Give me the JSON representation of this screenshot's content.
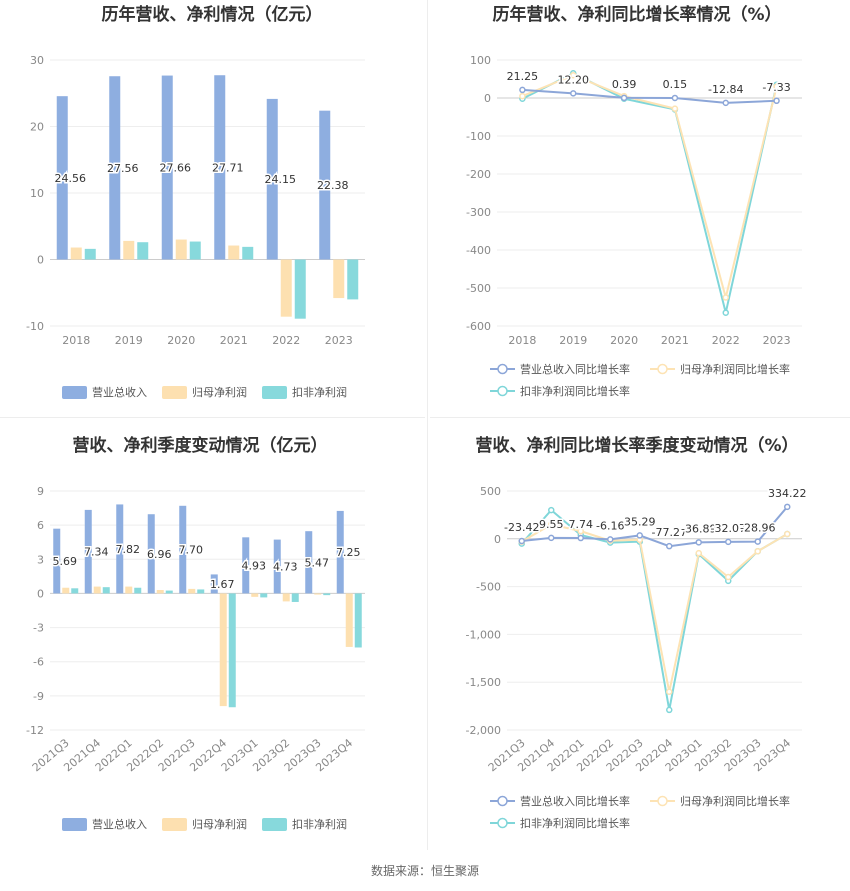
{
  "source": "数据来源：恒生聚源",
  "colors": {
    "revenue": "#8eaee0",
    "net_profit": "#fde0b0",
    "deducted_profit": "#87d9dc",
    "rev_line": "#8ca6d8",
    "np_line": "#fde3b4",
    "dp_line": "#7fd6d9"
  },
  "chart_data": [
    {
      "type": "bar",
      "title": "历年营收、净利情况（亿元）",
      "categories": [
        "2018",
        "2019",
        "2020",
        "2021",
        "2022",
        "2023"
      ],
      "ylim": [
        -10,
        30
      ],
      "yticks": [
        "30",
        "20",
        "10",
        "0",
        "-10"
      ],
      "ytick_values": [
        30,
        20,
        10,
        0,
        -10
      ],
      "series": [
        {
          "name": "营业总收入",
          "values": [
            24.56,
            27.56,
            27.66,
            27.71,
            24.15,
            22.38
          ],
          "labels": [
            "24.56",
            "27.56",
            "27.66",
            "27.71",
            "24.15",
            "22.38"
          ]
        },
        {
          "name": "归母净利润",
          "values": [
            1.8,
            2.8,
            3.0,
            2.1,
            -8.6,
            -5.8
          ]
        },
        {
          "name": "扣非净利润",
          "values": [
            1.6,
            2.6,
            2.7,
            1.9,
            -8.9,
            -6.0
          ]
        }
      ]
    },
    {
      "type": "line",
      "title": "历年营收、净利同比增长率情况（%）",
      "categories": [
        "2018",
        "2019",
        "2020",
        "2021",
        "2022",
        "2023"
      ],
      "ylim": [
        -600,
        100
      ],
      "yticks": [
        "100",
        "0",
        "-100",
        "-200",
        "-300",
        "-400",
        "-500",
        "-600"
      ],
      "ytick_values": [
        100,
        0,
        -100,
        -200,
        -300,
        -400,
        -500,
        -600
      ],
      "series": [
        {
          "name": "营业总收入同比增长率",
          "values": [
            21.25,
            12.2,
            0.39,
            0.15,
            -12.84,
            -7.33
          ],
          "labels": [
            "21.25",
            "12.20",
            "0.39",
            "0.15",
            "-12.84",
            "-7.33"
          ]
        },
        {
          "name": "归母净利润同比增长率",
          "values": [
            5,
            60,
            5,
            -28,
            -525,
            30
          ]
        },
        {
          "name": "扣非净利润同比增长率",
          "values": [
            -2,
            65,
            -2,
            -30,
            -565,
            35
          ]
        }
      ]
    },
    {
      "type": "bar",
      "title": "营收、净利季度变动情况（亿元）",
      "categories": [
        "2021Q3",
        "2021Q4",
        "2022Q1",
        "2022Q2",
        "2022Q3",
        "2022Q4",
        "2023Q1",
        "2023Q2",
        "2023Q3",
        "2023Q4"
      ],
      "ylim": [
        -12,
        9
      ],
      "yticks": [
        "9",
        "6",
        "3",
        "0",
        "-3",
        "-6",
        "-9",
        "-12"
      ],
      "ytick_values": [
        9,
        6,
        3,
        0,
        -3,
        -6,
        -9,
        -12
      ],
      "series": [
        {
          "name": "营业总收入",
          "values": [
            5.69,
            7.34,
            7.82,
            6.96,
            7.7,
            1.67,
            4.93,
            4.73,
            5.47,
            7.25
          ],
          "labels": [
            "5.69",
            "7.34",
            "7.82",
            "6.96",
            "7.70",
            "1.67",
            "4.93",
            "4.73",
            "5.47",
            "7.25"
          ]
        },
        {
          "name": "归母净利润",
          "values": [
            0.5,
            0.6,
            0.6,
            0.3,
            0.4,
            -9.9,
            -0.3,
            -0.7,
            -0.1,
            -4.7
          ]
        },
        {
          "name": "扣非净利润",
          "values": [
            0.45,
            0.55,
            0.5,
            0.25,
            0.35,
            -10.0,
            -0.35,
            -0.75,
            -0.15,
            -4.75
          ]
        }
      ]
    },
    {
      "type": "line",
      "title": "营收、净利同比增长率季度变动情况（%）",
      "categories": [
        "2021Q3",
        "2021Q4",
        "2022Q1",
        "2022Q2",
        "2022Q3",
        "2022Q4",
        "2023Q1",
        "2023Q2",
        "2023Q3",
        "2023Q4"
      ],
      "ylim": [
        -2000,
        500
      ],
      "yticks": [
        "500",
        "0",
        "-500",
        "-1,000",
        "-1,500",
        "-2,000"
      ],
      "ytick_values": [
        500,
        0,
        -500,
        -1000,
        -1500,
        -2000
      ],
      "series": [
        {
          "name": "营业总收入同比增长率",
          "values": [
            -23.42,
            9.55,
            7.74,
            -6.16,
            35.29,
            -77.27,
            -36.89,
            -32.07,
            -28.96,
            334.22
          ],
          "labels": [
            "-23.42",
            "9.55",
            "7.74",
            "-6.16",
            "35.29",
            "-77.27",
            "-36.89",
            "-32.07",
            "-28.96",
            "334.22"
          ]
        },
        {
          "name": "归母净利润同比增长率",
          "values": [
            -30,
            150,
            80,
            -20,
            -10,
            -1600,
            -150,
            -400,
            -130,
            50
          ]
        },
        {
          "name": "扣非净利润同比增长率",
          "values": [
            -50,
            300,
            40,
            -40,
            -30,
            -1790,
            -160,
            -440,
            -130,
            50
          ]
        }
      ]
    }
  ]
}
